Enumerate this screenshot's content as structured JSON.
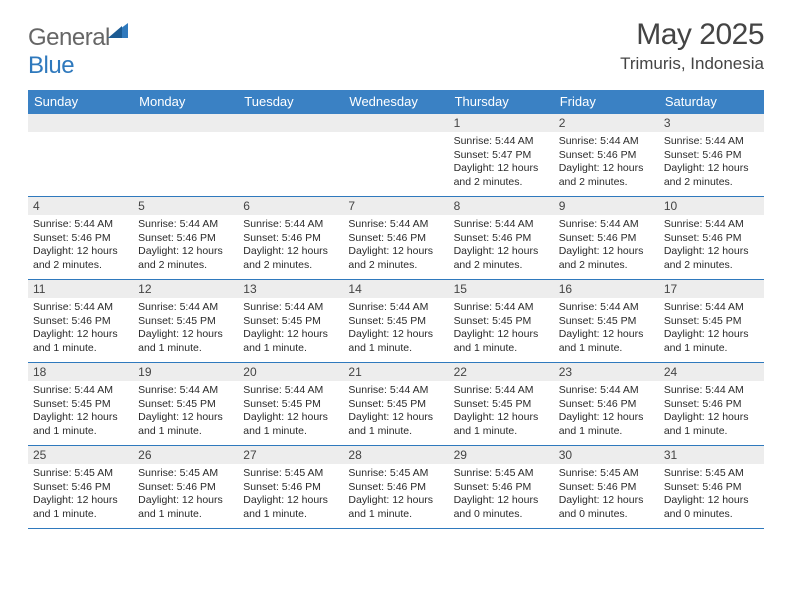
{
  "brand": {
    "part1": "General",
    "part2": "Blue"
  },
  "title": "May 2025",
  "location": "Trimuris, Indonesia",
  "colors": {
    "header_bg": "#3a81c4",
    "rule": "#2f79bd",
    "daynum_bg": "#ededed",
    "text": "#2a2a2a",
    "brand_gray": "#666666",
    "brand_blue": "#2f79bd"
  },
  "weekdays": [
    "Sunday",
    "Monday",
    "Tuesday",
    "Wednesday",
    "Thursday",
    "Friday",
    "Saturday"
  ],
  "weeks": [
    [
      {
        "num": "",
        "lines": []
      },
      {
        "num": "",
        "lines": []
      },
      {
        "num": "",
        "lines": []
      },
      {
        "num": "",
        "lines": []
      },
      {
        "num": "1",
        "lines": [
          "Sunrise: 5:44 AM",
          "Sunset: 5:47 PM",
          "Daylight: 12 hours and 2 minutes."
        ]
      },
      {
        "num": "2",
        "lines": [
          "Sunrise: 5:44 AM",
          "Sunset: 5:46 PM",
          "Daylight: 12 hours and 2 minutes."
        ]
      },
      {
        "num": "3",
        "lines": [
          "Sunrise: 5:44 AM",
          "Sunset: 5:46 PM",
          "Daylight: 12 hours and 2 minutes."
        ]
      }
    ],
    [
      {
        "num": "4",
        "lines": [
          "Sunrise: 5:44 AM",
          "Sunset: 5:46 PM",
          "Daylight: 12 hours and 2 minutes."
        ]
      },
      {
        "num": "5",
        "lines": [
          "Sunrise: 5:44 AM",
          "Sunset: 5:46 PM",
          "Daylight: 12 hours and 2 minutes."
        ]
      },
      {
        "num": "6",
        "lines": [
          "Sunrise: 5:44 AM",
          "Sunset: 5:46 PM",
          "Daylight: 12 hours and 2 minutes."
        ]
      },
      {
        "num": "7",
        "lines": [
          "Sunrise: 5:44 AM",
          "Sunset: 5:46 PM",
          "Daylight: 12 hours and 2 minutes."
        ]
      },
      {
        "num": "8",
        "lines": [
          "Sunrise: 5:44 AM",
          "Sunset: 5:46 PM",
          "Daylight: 12 hours and 2 minutes."
        ]
      },
      {
        "num": "9",
        "lines": [
          "Sunrise: 5:44 AM",
          "Sunset: 5:46 PM",
          "Daylight: 12 hours and 2 minutes."
        ]
      },
      {
        "num": "10",
        "lines": [
          "Sunrise: 5:44 AM",
          "Sunset: 5:46 PM",
          "Daylight: 12 hours and 2 minutes."
        ]
      }
    ],
    [
      {
        "num": "11",
        "lines": [
          "Sunrise: 5:44 AM",
          "Sunset: 5:46 PM",
          "Daylight: 12 hours and 1 minute."
        ]
      },
      {
        "num": "12",
        "lines": [
          "Sunrise: 5:44 AM",
          "Sunset: 5:45 PM",
          "Daylight: 12 hours and 1 minute."
        ]
      },
      {
        "num": "13",
        "lines": [
          "Sunrise: 5:44 AM",
          "Sunset: 5:45 PM",
          "Daylight: 12 hours and 1 minute."
        ]
      },
      {
        "num": "14",
        "lines": [
          "Sunrise: 5:44 AM",
          "Sunset: 5:45 PM",
          "Daylight: 12 hours and 1 minute."
        ]
      },
      {
        "num": "15",
        "lines": [
          "Sunrise: 5:44 AM",
          "Sunset: 5:45 PM",
          "Daylight: 12 hours and 1 minute."
        ]
      },
      {
        "num": "16",
        "lines": [
          "Sunrise: 5:44 AM",
          "Sunset: 5:45 PM",
          "Daylight: 12 hours and 1 minute."
        ]
      },
      {
        "num": "17",
        "lines": [
          "Sunrise: 5:44 AM",
          "Sunset: 5:45 PM",
          "Daylight: 12 hours and 1 minute."
        ]
      }
    ],
    [
      {
        "num": "18",
        "lines": [
          "Sunrise: 5:44 AM",
          "Sunset: 5:45 PM",
          "Daylight: 12 hours and 1 minute."
        ]
      },
      {
        "num": "19",
        "lines": [
          "Sunrise: 5:44 AM",
          "Sunset: 5:45 PM",
          "Daylight: 12 hours and 1 minute."
        ]
      },
      {
        "num": "20",
        "lines": [
          "Sunrise: 5:44 AM",
          "Sunset: 5:45 PM",
          "Daylight: 12 hours and 1 minute."
        ]
      },
      {
        "num": "21",
        "lines": [
          "Sunrise: 5:44 AM",
          "Sunset: 5:45 PM",
          "Daylight: 12 hours and 1 minute."
        ]
      },
      {
        "num": "22",
        "lines": [
          "Sunrise: 5:44 AM",
          "Sunset: 5:45 PM",
          "Daylight: 12 hours and 1 minute."
        ]
      },
      {
        "num": "23",
        "lines": [
          "Sunrise: 5:44 AM",
          "Sunset: 5:46 PM",
          "Daylight: 12 hours and 1 minute."
        ]
      },
      {
        "num": "24",
        "lines": [
          "Sunrise: 5:44 AM",
          "Sunset: 5:46 PM",
          "Daylight: 12 hours and 1 minute."
        ]
      }
    ],
    [
      {
        "num": "25",
        "lines": [
          "Sunrise: 5:45 AM",
          "Sunset: 5:46 PM",
          "Daylight: 12 hours and 1 minute."
        ]
      },
      {
        "num": "26",
        "lines": [
          "Sunrise: 5:45 AM",
          "Sunset: 5:46 PM",
          "Daylight: 12 hours and 1 minute."
        ]
      },
      {
        "num": "27",
        "lines": [
          "Sunrise: 5:45 AM",
          "Sunset: 5:46 PM",
          "Daylight: 12 hours and 1 minute."
        ]
      },
      {
        "num": "28",
        "lines": [
          "Sunrise: 5:45 AM",
          "Sunset: 5:46 PM",
          "Daylight: 12 hours and 1 minute."
        ]
      },
      {
        "num": "29",
        "lines": [
          "Sunrise: 5:45 AM",
          "Sunset: 5:46 PM",
          "Daylight: 12 hours and 0 minutes."
        ]
      },
      {
        "num": "30",
        "lines": [
          "Sunrise: 5:45 AM",
          "Sunset: 5:46 PM",
          "Daylight: 12 hours and 0 minutes."
        ]
      },
      {
        "num": "31",
        "lines": [
          "Sunrise: 5:45 AM",
          "Sunset: 5:46 PM",
          "Daylight: 12 hours and 0 minutes."
        ]
      }
    ]
  ]
}
